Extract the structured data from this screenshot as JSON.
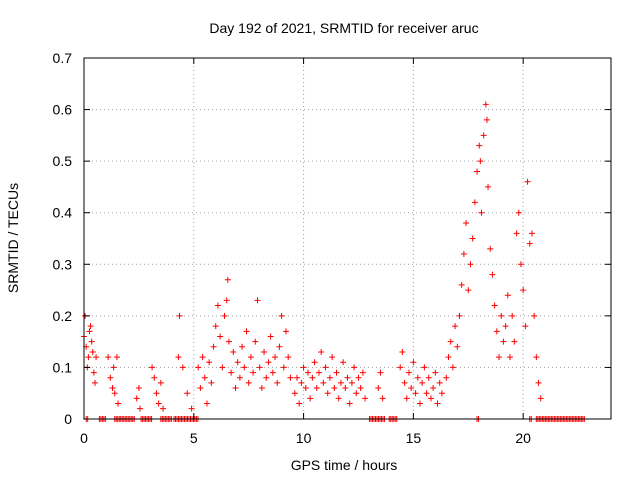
{
  "chart_data": {
    "type": "scatter",
    "title": "Day 192 of 2021, SRMTID for receiver aruc",
    "xlabel": "GPS time / hours",
    "ylabel": "SRMTID / TECUs",
    "xlim": [
      0,
      24
    ],
    "ylim": [
      0,
      0.7
    ],
    "xticks": [
      0,
      5,
      10,
      15,
      20
    ],
    "xtick_labels": [
      "0",
      "5",
      "10",
      "15",
      "20"
    ],
    "yticks": [
      0,
      0.1,
      0.2,
      0.3,
      0.4,
      0.5,
      0.6,
      0.7
    ],
    "ytick_labels": [
      "0",
      "0.1",
      "0.2",
      "0.3",
      "0.4",
      "0.5",
      "0.6",
      "0.7"
    ],
    "grid": true,
    "marker": "+",
    "color": "#ff0000",
    "series": [
      {
        "name": "aruc",
        "points": [
          [
            0.0,
            0.16
          ],
          [
            0.05,
            0.2
          ],
          [
            0.1,
            0.14
          ],
          [
            0.15,
            0.1
          ],
          [
            0.2,
            0.12
          ],
          [
            0.25,
            0.17
          ],
          [
            0.3,
            0.18
          ],
          [
            0.35,
            0.15
          ],
          [
            0.4,
            0.13
          ],
          [
            0.45,
            0.09
          ],
          [
            0.5,
            0.07
          ],
          [
            0.55,
            0.12
          ],
          [
            1.1,
            0.12
          ],
          [
            1.2,
            0.08
          ],
          [
            1.3,
            0.06
          ],
          [
            1.35,
            0.1
          ],
          [
            1.4,
            0.05
          ],
          [
            1.5,
            0.12
          ],
          [
            1.55,
            0.03
          ],
          [
            2.4,
            0.04
          ],
          [
            2.5,
            0.06
          ],
          [
            2.55,
            0.02
          ],
          [
            3.1,
            0.1
          ],
          [
            3.2,
            0.08
          ],
          [
            3.3,
            0.05
          ],
          [
            3.4,
            0.03
          ],
          [
            3.5,
            0.07
          ],
          [
            3.6,
            0.02
          ],
          [
            4.3,
            0.12
          ],
          [
            4.35,
            0.2
          ],
          [
            4.5,
            0.1
          ],
          [
            4.7,
            0.05
          ],
          [
            4.9,
            0.02
          ],
          [
            5.2,
            0.1
          ],
          [
            5.3,
            0.06
          ],
          [
            5.4,
            0.12
          ],
          [
            5.5,
            0.08
          ],
          [
            5.6,
            0.03
          ],
          [
            5.7,
            0.11
          ],
          [
            5.8,
            0.07
          ],
          [
            5.9,
            0.14
          ],
          [
            6.0,
            0.18
          ],
          [
            6.1,
            0.22
          ],
          [
            6.2,
            0.16
          ],
          [
            6.3,
            0.1
          ],
          [
            6.4,
            0.2
          ],
          [
            6.5,
            0.23
          ],
          [
            6.55,
            0.27
          ],
          [
            6.6,
            0.15
          ],
          [
            6.7,
            0.09
          ],
          [
            6.8,
            0.13
          ],
          [
            6.9,
            0.06
          ],
          [
            7.0,
            0.11
          ],
          [
            7.1,
            0.08
          ],
          [
            7.2,
            0.14
          ],
          [
            7.3,
            0.1
          ],
          [
            7.4,
            0.17
          ],
          [
            7.5,
            0.07
          ],
          [
            7.6,
            0.12
          ],
          [
            7.7,
            0.09
          ],
          [
            7.8,
            0.15
          ],
          [
            7.9,
            0.23
          ],
          [
            8.0,
            0.1
          ],
          [
            8.1,
            0.06
          ],
          [
            8.2,
            0.13
          ],
          [
            8.3,
            0.08
          ],
          [
            8.4,
            0.11
          ],
          [
            8.5,
            0.16
          ],
          [
            8.6,
            0.09
          ],
          [
            8.7,
            0.12
          ],
          [
            8.8,
            0.07
          ],
          [
            8.9,
            0.14
          ],
          [
            9.0,
            0.2
          ],
          [
            9.1,
            0.1
          ],
          [
            9.2,
            0.17
          ],
          [
            9.3,
            0.12
          ],
          [
            9.4,
            0.08
          ],
          [
            9.6,
            0.05
          ],
          [
            9.7,
            0.08
          ],
          [
            9.8,
            0.03
          ],
          [
            9.9,
            0.07
          ],
          [
            10.0,
            0.1
          ],
          [
            10.1,
            0.06
          ],
          [
            10.2,
            0.09
          ],
          [
            10.3,
            0.04
          ],
          [
            10.4,
            0.08
          ],
          [
            10.5,
            0.11
          ],
          [
            10.6,
            0.06
          ],
          [
            10.7,
            0.09
          ],
          [
            10.8,
            0.13
          ],
          [
            10.9,
            0.07
          ],
          [
            11.0,
            0.1
          ],
          [
            11.1,
            0.05
          ],
          [
            11.2,
            0.08
          ],
          [
            11.3,
            0.12
          ],
          [
            11.4,
            0.06
          ],
          [
            11.5,
            0.09
          ],
          [
            11.6,
            0.04
          ],
          [
            11.7,
            0.07
          ],
          [
            11.8,
            0.11
          ],
          [
            11.9,
            0.06
          ],
          [
            12.0,
            0.08
          ],
          [
            12.1,
            0.03
          ],
          [
            12.2,
            0.07
          ],
          [
            12.3,
            0.1
          ],
          [
            12.4,
            0.05
          ],
          [
            12.5,
            0.08
          ],
          [
            12.6,
            0.06
          ],
          [
            12.7,
            0.09
          ],
          [
            12.8,
            0.04
          ],
          [
            13.4,
            0.06
          ],
          [
            13.5,
            0.09
          ],
          [
            13.6,
            0.04
          ],
          [
            14.4,
            0.1
          ],
          [
            14.5,
            0.13
          ],
          [
            14.6,
            0.07
          ],
          [
            14.7,
            0.04
          ],
          [
            14.8,
            0.09
          ],
          [
            14.9,
            0.06
          ],
          [
            15.0,
            0.11
          ],
          [
            15.1,
            0.05
          ],
          [
            15.2,
            0.08
          ],
          [
            15.3,
            0.03
          ],
          [
            15.4,
            0.07
          ],
          [
            15.5,
            0.1
          ],
          [
            15.6,
            0.05
          ],
          [
            15.7,
            0.08
          ],
          [
            15.8,
            0.04
          ],
          [
            15.9,
            0.06
          ],
          [
            16.0,
            0.09
          ],
          [
            16.1,
            0.03
          ],
          [
            16.2,
            0.07
          ],
          [
            16.3,
            0.05
          ],
          [
            16.5,
            0.08
          ],
          [
            16.6,
            0.12
          ],
          [
            16.7,
            0.15
          ],
          [
            16.8,
            0.1
          ],
          [
            16.9,
            0.18
          ],
          [
            17.0,
            0.14
          ],
          [
            17.1,
            0.2
          ],
          [
            17.2,
            0.26
          ],
          [
            17.3,
            0.32
          ],
          [
            17.4,
            0.38
          ],
          [
            17.5,
            0.25
          ],
          [
            17.6,
            0.3
          ],
          [
            17.7,
            0.35
          ],
          [
            17.8,
            0.42
          ],
          [
            17.9,
            0.48
          ],
          [
            18.0,
            0.53
          ],
          [
            18.05,
            0.5
          ],
          [
            18.1,
            0.4
          ],
          [
            18.2,
            0.55
          ],
          [
            18.3,
            0.61
          ],
          [
            18.35,
            0.58
          ],
          [
            18.4,
            0.45
          ],
          [
            18.5,
            0.33
          ],
          [
            18.6,
            0.28
          ],
          [
            18.7,
            0.22
          ],
          [
            18.8,
            0.17
          ],
          [
            18.9,
            0.12
          ],
          [
            19.0,
            0.2
          ],
          [
            19.1,
            0.15
          ],
          [
            19.2,
            0.18
          ],
          [
            19.3,
            0.24
          ],
          [
            19.4,
            0.12
          ],
          [
            19.5,
            0.2
          ],
          [
            19.6,
            0.15
          ],
          [
            19.7,
            0.36
          ],
          [
            19.8,
            0.4
          ],
          [
            19.9,
            0.3
          ],
          [
            20.0,
            0.25
          ],
          [
            20.1,
            0.18
          ],
          [
            20.2,
            0.46
          ],
          [
            20.3,
            0.34
          ],
          [
            20.4,
            0.36
          ],
          [
            20.5,
            0.2
          ],
          [
            20.6,
            0.12
          ],
          [
            20.7,
            0.07
          ],
          [
            20.8,
            0.04
          ]
        ],
        "zero_segments": [
          [
            0.1,
            0.2
          ],
          [
            0.7,
            1.0
          ],
          [
            1.4,
            2.3
          ],
          [
            2.6,
            3.1
          ],
          [
            3.5,
            4.0
          ],
          [
            4.1,
            5.0
          ],
          [
            5.05,
            5.2
          ],
          [
            13.0,
            13.7
          ],
          [
            13.9,
            14.3
          ],
          [
            17.9,
            18.0
          ],
          [
            20.3,
            20.4
          ],
          [
            20.6,
            22.8
          ]
        ]
      }
    ]
  }
}
